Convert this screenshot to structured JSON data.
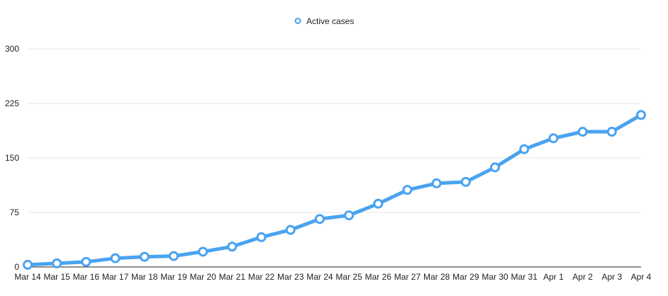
{
  "chart_data": {
    "type": "line",
    "title": "",
    "xlabel": "",
    "ylabel": "",
    "categories": [
      "Mar 14",
      "Mar 15",
      "Mar 16",
      "Mar 17",
      "Mar 18",
      "Mar 19",
      "Mar 20",
      "Mar 21",
      "Mar 22",
      "Mar 23",
      "Mar 24",
      "Mar 25",
      "Mar 26",
      "Mar 27",
      "Mar 28",
      "Mar 29",
      "Mar 30",
      "Mar 31",
      "Apr 1",
      "Apr 2",
      "Apr 3",
      "Apr 4"
    ],
    "series": [
      {
        "name": "Active cases",
        "color": "#4aa3f0",
        "values": [
          3,
          5,
          7,
          12,
          14,
          15,
          21,
          28,
          41,
          51,
          66,
          71,
          87,
          106,
          115,
          117,
          137,
          162,
          177,
          186,
          186,
          209
        ]
      }
    ],
    "ylim": [
      0,
      300
    ],
    "yticks": [
      0,
      75,
      150,
      225,
      300
    ],
    "grid": true,
    "legend_position": "top-center"
  }
}
